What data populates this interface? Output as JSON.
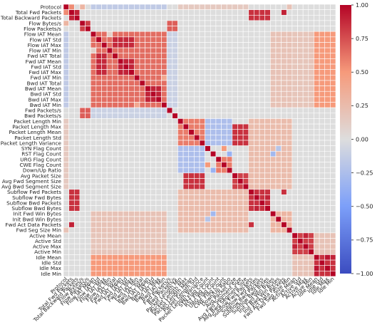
{
  "chart_data": {
    "type": "heatmap",
    "title": "",
    "xlabel": "",
    "ylabel": "",
    "labels": [
      "Protocol",
      "Total Fwd Packets",
      "Total Backward Packets",
      "Flow Bytes/s",
      "Flow Packets/s",
      "Flow IAT Mean",
      "Flow IAT Std",
      "Flow IAT Max",
      "Flow IAT Min",
      "Fwd IAT Total",
      "Fwd IAT Mean",
      "Fwd IAT Std",
      "Fwd IAT Max",
      "Fwd IAT Min",
      "Bwd IAT Total",
      "Bwd IAT Mean",
      "Bwd IAT Std",
      "Bwd IAT Max",
      "Bwd IAT Min",
      "Fwd Packets/s",
      "Bwd Packets/s",
      "Packet Length Min",
      "Packet Length Max",
      "Packet Length Mean",
      "Packet Length Std",
      "Packet Length Variance",
      "SYN Flag Count",
      "RST Flag Count",
      "URG Flag Count",
      "CWE Flag Count",
      "Down/Up Ratio",
      "Avg Packet Size",
      "Avg Fwd Segment Size",
      "Avg Bwd Segment Size",
      "Subflow Fwd Packets",
      "Subflow Fwd Bytes",
      "Subflow Bwd Packets",
      "Subflow Bwd Bytes",
      "Init Fwd Win Bytes",
      "Init Bwd Win Bytes",
      "Fwd Act Data Packets",
      "Fwd Seg Size Min",
      "Active Mean",
      "Active Std",
      "Active Max",
      "Active Min",
      "Idle Mean",
      "Idle Std",
      "Idle Max",
      "Idle Min"
    ],
    "colorbar": {
      "min": -1.0,
      "max": 1.0,
      "ticks": [
        -1.0,
        -0.75,
        -0.5,
        -0.25,
        0.0,
        0.25,
        0.5,
        0.75,
        1.0
      ],
      "tick_labels": [
        "−1.00",
        "−0.75",
        "−0.50",
        "−0.25",
        "0.00",
        "0.25",
        "0.50",
        "0.75",
        "1.00"
      ],
      "colormap": "coolwarm"
    },
    "blocks": [
      {
        "rows": [
          1,
          2
        ],
        "cols": [
          1,
          2
        ],
        "value": 0.9
      },
      {
        "rows": [
          3,
          4
        ],
        "cols": [
          3,
          4
        ],
        "value": 0.8
      },
      {
        "rows": [
          5,
          18
        ],
        "cols": [
          5,
          18
        ],
        "value": 0.65
      },
      {
        "rows": [
          5,
          18
        ],
        "cols": [
          46,
          49
        ],
        "value": 0.5
      },
      {
        "rows": [
          46,
          49
        ],
        "cols": [
          5,
          18
        ],
        "value": 0.5
      },
      {
        "rows": [
          5,
          18
        ],
        "cols": [
          38,
          41
        ],
        "value": 0.2
      },
      {
        "rows": [
          38,
          41
        ],
        "cols": [
          5,
          18
        ],
        "value": 0.2
      },
      {
        "rows": [
          5,
          18
        ],
        "cols": [
          42,
          45
        ],
        "value": 0.18
      },
      {
        "rows": [
          42,
          45
        ],
        "cols": [
          5,
          18
        ],
        "value": 0.18
      },
      {
        "rows": [
          6,
          7
        ],
        "cols": [
          9,
          12
        ],
        "value": 0.88
      },
      {
        "rows": [
          9,
          12
        ],
        "cols": [
          6,
          7
        ],
        "value": 0.88
      },
      {
        "rows": [
          10,
          12
        ],
        "cols": [
          10,
          12
        ],
        "value": 0.9
      },
      {
        "rows": [
          15,
          17
        ],
        "cols": [
          15,
          17
        ],
        "value": 0.9
      },
      {
        "rows": [
          21,
          25
        ],
        "cols": [
          21,
          25
        ],
        "value": 0.6
      },
      {
        "rows": [
          31,
          33
        ],
        "cols": [
          31,
          33
        ],
        "value": 0.8
      },
      {
        "rows": [
          22,
          25
        ],
        "cols": [
          31,
          33
        ],
        "value": 0.85
      },
      {
        "rows": [
          31,
          33
        ],
        "cols": [
          22,
          25
        ],
        "value": 0.85
      },
      {
        "rows": [
          21,
          33
        ],
        "cols": [
          34,
          41
        ],
        "value": 0.25
      },
      {
        "rows": [
          34,
          41
        ],
        "cols": [
          21,
          33
        ],
        "value": 0.25
      },
      {
        "rows": [
          34,
          37
        ],
        "cols": [
          34,
          37
        ],
        "value": 0.85
      },
      {
        "rows": [
          42,
          45
        ],
        "cols": [
          42,
          45
        ],
        "value": 0.8
      },
      {
        "rows": [
          46,
          49
        ],
        "cols": [
          46,
          49
        ],
        "value": 0.85
      },
      {
        "rows": [
          42,
          45
        ],
        "cols": [
          46,
          49
        ],
        "value": 0.2
      },
      {
        "rows": [
          46,
          49
        ],
        "cols": [
          42,
          45
        ],
        "value": 0.2
      },
      {
        "rows": [
          1,
          2
        ],
        "cols": [
          34,
          37
        ],
        "value": 0.85
      },
      {
        "rows": [
          34,
          37
        ],
        "cols": [
          1,
          2
        ],
        "value": 0.85
      },
      {
        "rows": [
          0,
          0
        ],
        "cols": [
          5,
          18
        ],
        "value": -0.15
      },
      {
        "rows": [
          5,
          18
        ],
        "cols": [
          0,
          0
        ],
        "value": -0.15
      },
      {
        "rows": [
          0,
          0
        ],
        "cols": [
          21,
          33
        ],
        "value": 0.15
      },
      {
        "rows": [
          21,
          33
        ],
        "cols": [
          0,
          0
        ],
        "value": 0.15
      },
      {
        "rows": [
          26,
          30
        ],
        "cols": [
          21,
          25
        ],
        "value": -0.25
      },
      {
        "rows": [
          21,
          25
        ],
        "cols": [
          26,
          30
        ],
        "value": -0.25
      },
      {
        "rows": [
          28,
          30
        ],
        "cols": [
          28,
          30
        ],
        "value": 0.6
      },
      {
        "rows": [
          19,
          20
        ],
        "cols": [
          3,
          4
        ],
        "value": 0.7
      },
      {
        "rows": [
          3,
          4
        ],
        "cols": [
          19,
          20
        ],
        "value": 0.7
      },
      {
        "rows": [
          38,
          41
        ],
        "cols": [
          38,
          41
        ],
        "value": 0.3
      },
      {
        "rows": [
          19,
          20
        ],
        "cols": [
          5,
          18
        ],
        "value": -0.1
      },
      {
        "rows": [
          5,
          18
        ],
        "cols": [
          19,
          20
        ],
        "value": -0.1
      }
    ],
    "cells": [
      {
        "r": 0,
        "c": 1,
        "value": 0.55
      },
      {
        "r": 1,
        "c": 0,
        "value": 0.55
      },
      {
        "r": 0,
        "c": 3,
        "value": 0.3
      },
      {
        "r": 3,
        "c": 0,
        "value": 0.3
      },
      {
        "r": 1,
        "c": 40,
        "value": 0.9
      },
      {
        "r": 40,
        "c": 1,
        "value": 0.9
      },
      {
        "r": 5,
        "c": 8,
        "value": 0.1
      },
      {
        "r": 8,
        "c": 5,
        "value": 0.1
      },
      {
        "r": 13,
        "c": 18,
        "value": 0.4
      },
      {
        "r": 18,
        "c": 13,
        "value": 0.4
      },
      {
        "r": 26,
        "c": 29,
        "value": 0.5
      },
      {
        "r": 29,
        "c": 26,
        "value": 0.5
      },
      {
        "r": 27,
        "c": 30,
        "value": -0.35
      },
      {
        "r": 30,
        "c": 27,
        "value": -0.35
      },
      {
        "r": 38,
        "c": 27,
        "value": -0.3
      },
      {
        "r": 27,
        "c": 38,
        "value": -0.3
      },
      {
        "r": 39,
        "c": 26,
        "value": -0.2
      },
      {
        "r": 26,
        "c": 39,
        "value": -0.2
      },
      {
        "r": 41,
        "c": 0,
        "value": 0.2
      },
      {
        "r": 0,
        "c": 41,
        "value": 0.2
      },
      {
        "r": 35,
        "c": 37,
        "value": 0.9
      },
      {
        "r": 37,
        "c": 35,
        "value": 0.9
      },
      {
        "r": 40,
        "c": 34,
        "value": 0.85
      },
      {
        "r": 34,
        "c": 40,
        "value": 0.85
      },
      {
        "r": 44,
        "c": 42,
        "value": 0.9
      },
      {
        "r": 42,
        "c": 44,
        "value": 0.9
      },
      {
        "r": 48,
        "c": 46,
        "value": 0.95
      },
      {
        "r": 46,
        "c": 48,
        "value": 0.95
      },
      {
        "r": 49,
        "c": 46,
        "value": 0.9
      },
      {
        "r": 46,
        "c": 49,
        "value": 0.9
      }
    ],
    "diagonal_value": 1.0,
    "default_value": 0.0,
    "grid": true
  }
}
